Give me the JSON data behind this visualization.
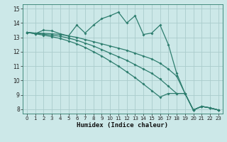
{
  "xlabel": "Humidex (Indice chaleur)",
  "bg_color": "#cce8e8",
  "grid_color": "#aacccc",
  "line_color": "#2d7d6e",
  "xlim": [
    -0.5,
    23.5
  ],
  "ylim": [
    7.7,
    15.3
  ],
  "xticks": [
    0,
    1,
    2,
    3,
    4,
    5,
    6,
    7,
    8,
    9,
    10,
    11,
    12,
    13,
    14,
    15,
    16,
    17,
    18,
    19,
    20,
    21,
    22,
    23
  ],
  "yticks": [
    8,
    9,
    10,
    11,
    12,
    13,
    14,
    15
  ],
  "lines": [
    {
      "x": [
        0,
        1,
        2,
        3,
        4,
        5,
        6,
        7,
        8,
        9,
        10,
        11,
        12,
        13,
        14,
        15,
        16,
        17,
        18,
        19,
        20,
        21,
        22,
        23
      ],
      "y": [
        13.35,
        13.25,
        13.5,
        13.45,
        13.25,
        13.1,
        13.85,
        13.3,
        13.85,
        14.3,
        14.5,
        14.75,
        14.0,
        14.5,
        13.2,
        13.3,
        13.85,
        12.5,
        10.5,
        9.1,
        7.95,
        8.2,
        8.1,
        7.95
      ]
    },
    {
      "x": [
        0,
        1,
        2,
        3,
        4,
        5,
        6,
        7,
        8,
        9,
        10,
        11,
        12,
        13,
        14,
        15,
        16,
        17,
        18,
        19,
        20,
        21,
        22,
        23
      ],
      "y": [
        13.35,
        13.3,
        13.28,
        13.25,
        13.2,
        13.1,
        13.0,
        12.85,
        12.7,
        12.55,
        12.4,
        12.25,
        12.1,
        11.9,
        11.7,
        11.5,
        11.2,
        10.8,
        10.3,
        9.1,
        7.95,
        8.2,
        8.1,
        7.95
      ]
    },
    {
      "x": [
        0,
        1,
        2,
        3,
        4,
        5,
        6,
        7,
        8,
        9,
        10,
        11,
        12,
        13,
        14,
        15,
        16,
        17,
        18,
        19,
        20,
        21,
        22,
        23
      ],
      "y": [
        13.35,
        13.28,
        13.22,
        13.15,
        13.08,
        12.95,
        12.8,
        12.6,
        12.4,
        12.15,
        11.9,
        11.65,
        11.4,
        11.1,
        10.8,
        10.5,
        10.1,
        9.6,
        9.1,
        9.1,
        7.95,
        8.2,
        8.1,
        7.95
      ]
    },
    {
      "x": [
        0,
        1,
        2,
        3,
        4,
        5,
        6,
        7,
        8,
        9,
        10,
        11,
        12,
        13,
        14,
        15,
        16,
        17,
        18,
        19,
        20,
        21,
        22,
        23
      ],
      "y": [
        13.35,
        13.25,
        13.15,
        13.05,
        12.92,
        12.75,
        12.55,
        12.3,
        12.0,
        11.7,
        11.35,
        11.0,
        10.6,
        10.2,
        9.75,
        9.3,
        8.85,
        9.1,
        9.1,
        9.1,
        7.95,
        8.2,
        8.1,
        7.95
      ]
    }
  ]
}
